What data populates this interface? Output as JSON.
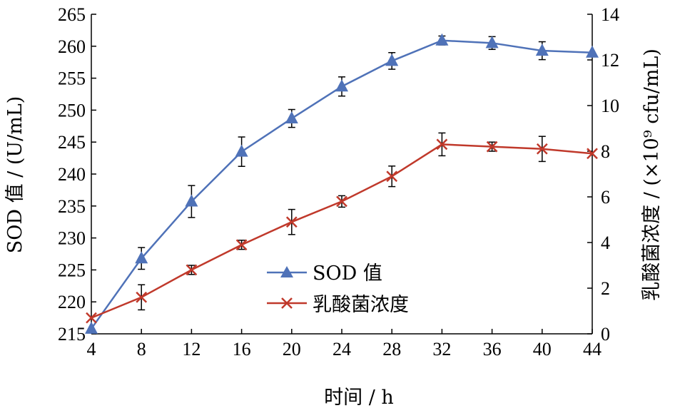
{
  "chart_data": {
    "type": "line",
    "title": "",
    "xlabel": "时间 / h",
    "ylabel_left": "SOD 值 / (U/mL)",
    "ylabel_right": "乳酸菌浓度 / (×10⁹ cfu/mL)",
    "xlim": [
      4,
      44
    ],
    "ylim_left": [
      215,
      265
    ],
    "ylim_right": [
      0,
      14
    ],
    "x_ticks": [
      "4",
      "8",
      "12",
      "16",
      "20",
      "24",
      "28",
      "32",
      "36",
      "40",
      "44"
    ],
    "y_left_ticks": [
      "215",
      "220",
      "225",
      "230",
      "235",
      "240",
      "245",
      "250",
      "255",
      "260",
      "265"
    ],
    "y_right_ticks": [
      "0",
      "2",
      "4",
      "6",
      "8",
      "10",
      "12",
      "14"
    ],
    "grid": false,
    "legend_position": "center",
    "x": [
      4,
      8,
      12,
      16,
      20,
      24,
      28,
      32,
      36,
      40,
      44
    ],
    "series": [
      {
        "name": "SOD 值",
        "axis": "left",
        "marker": "triangle",
        "color": "#4f72b8",
        "values": [
          215.8,
          226.8,
          235.7,
          243.5,
          248.7,
          253.7,
          257.7,
          260.9,
          260.5,
          259.3,
          259.0
        ],
        "error": [
          0,
          1.7,
          2.5,
          2.3,
          1.4,
          1.5,
          1.3,
          0.7,
          1.0,
          1.4,
          0
        ]
      },
      {
        "name": "乳酸菌浓度",
        "axis": "right",
        "marker": "x",
        "color": "#c0392b",
        "values": [
          0.7,
          1.6,
          2.8,
          3.9,
          4.9,
          5.8,
          6.9,
          8.3,
          8.2,
          8.1,
          7.9
        ],
        "error": [
          0,
          0.55,
          0.2,
          0.2,
          0.55,
          0.25,
          0.45,
          0.5,
          0.2,
          0.55,
          0
        ]
      }
    ]
  }
}
